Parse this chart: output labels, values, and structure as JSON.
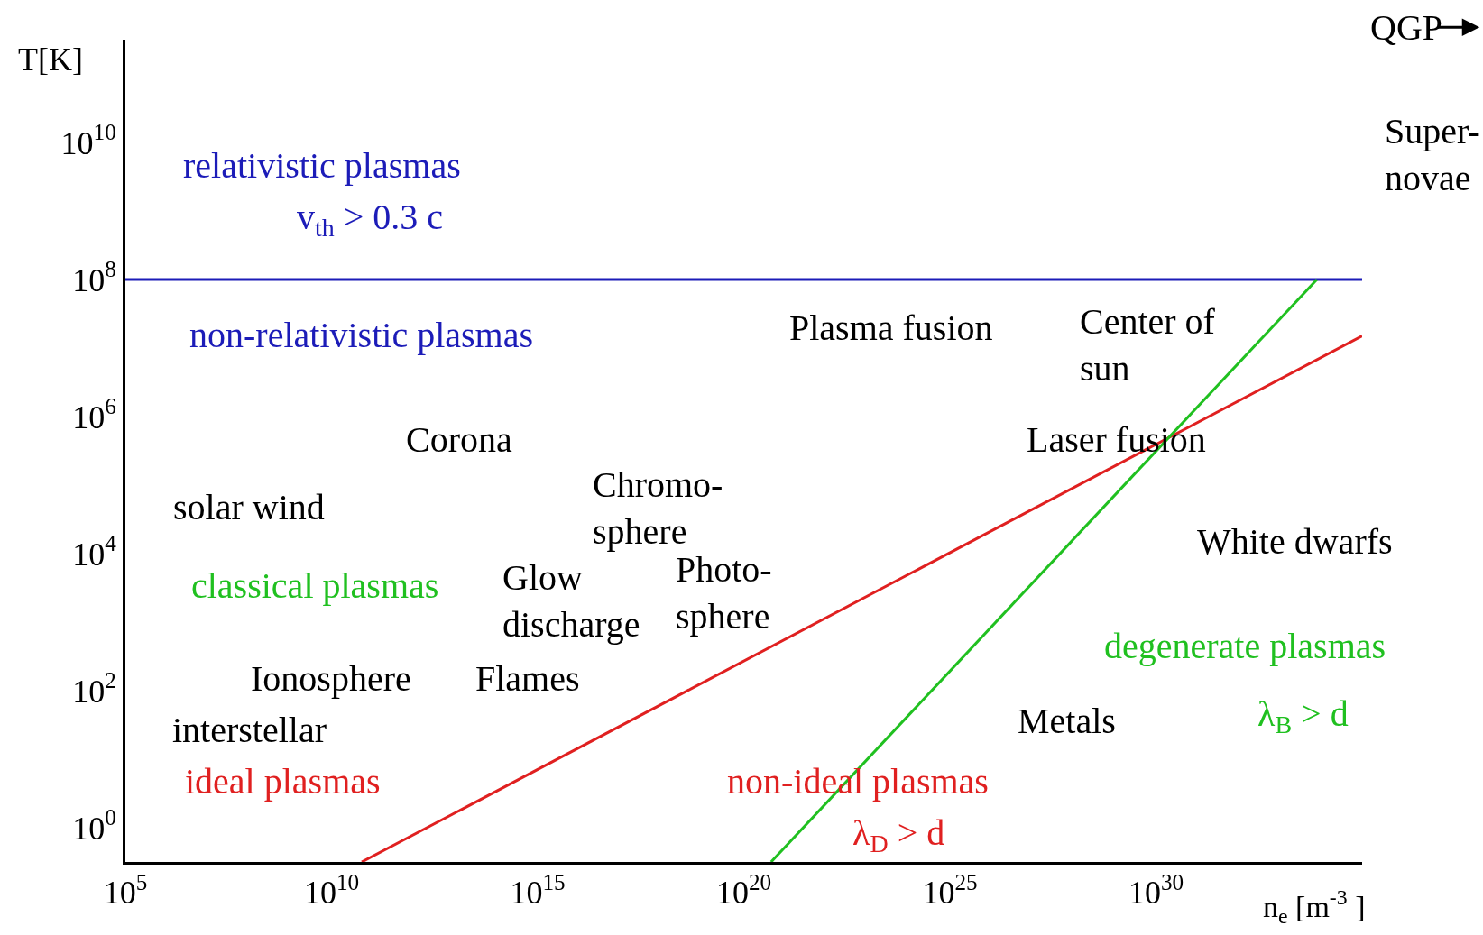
{
  "chart_data": {
    "type": "line",
    "xlabel": "n$_{e}$ [m$^{-3}$ ]",
    "ylabel": "T[K]",
    "log": "xy",
    "grid": false,
    "marker": "none",
    "line_style": "solid",
    "xlim": [
      100000.0,
      1e+35
    ],
    "ylim": [
      0.316,
      316000000000.0
    ],
    "xticks": [
      {
        "value": 100000.0,
        "label": "10$^{5}$"
      },
      {
        "value": 10000000000.0,
        "label": "10$^{10}$"
      },
      {
        "value": 1000000000000000.0,
        "label": "10$^{15}$"
      },
      {
        "value": 1e+20,
        "label": "10$^{20}$"
      },
      {
        "value": 1e+25,
        "label": "10$^{25}$"
      },
      {
        "value": 1e+30,
        "label": "10$^{30}$"
      }
    ],
    "yticks": [
      {
        "value": 1,
        "label": "10$^{0}$"
      },
      {
        "value": 100,
        "label": "10$^{2}$"
      },
      {
        "value": 10000.0,
        "label": "10$^{4}$"
      },
      {
        "value": 1000000.0,
        "label": "10$^{6}$"
      },
      {
        "value": 100000000.0,
        "label": "10$^{8}$"
      },
      {
        "value": 10000000000.0,
        "label": "10$^{10}$"
      }
    ],
    "series": [
      {
        "color": "#1c1cb8",
        "x": [
          100000.0,
          1e+35
        ],
        "values": [
          100000000.0,
          100000000.0
        ]
      },
      {
        "color": "#e02020",
        "x": [
          54000000000.0,
          1e+35
        ],
        "values": [
          0.316,
          15000000.0
        ]
      },
      {
        "color": "#20c020",
        "x": [
          4.6e+20,
          8e+33
        ],
        "values": [
          0.316,
          100000000.0
        ]
      }
    ],
    "annotations": [
      "QGP",
      "Super-\nnovae",
      "relativistic plasmas",
      "v$_{th}$ > 0.3 c",
      "non-relativistic plasmas",
      "Plasma fusion",
      "Center of\nsun",
      "Corona",
      "Laser fusion",
      "solar wind",
      "Chromo-\nsphere",
      "White dwarfs",
      "classical plasmas",
      "Glow\ndischarge",
      "Photo-\nsphere",
      "degenerate plasmas",
      "Ionosphere",
      "Flames",
      "λ$_{B}$ > d",
      "Metals",
      "interstellar",
      "ideal plasmas",
      "non-ideal plasmas",
      "λ$_{D}$ > d"
    ]
  }
}
